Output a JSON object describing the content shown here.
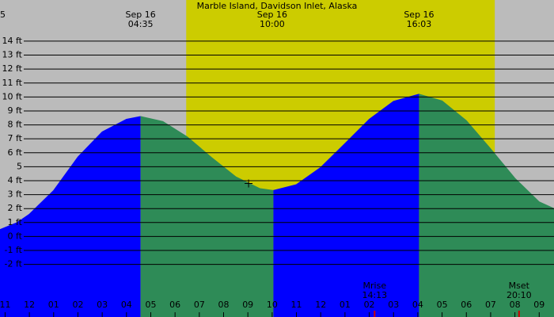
{
  "chart_data": {
    "type": "tide",
    "title": "Marble Island, Davidson Inlet, Alaska",
    "background": "#bbbbbb",
    "daylight": {
      "range": [
        6.46,
        19.17
      ],
      "color": "#cccc00"
    },
    "xlim": [
      -1.21,
      21.61
    ],
    "ylim": [
      -5.77,
      16.95
    ],
    "yticks": [
      {
        "value": 14,
        "label": "14 ft"
      },
      {
        "value": 13,
        "label": "13 ft"
      },
      {
        "value": 12,
        "label": "12 ft"
      },
      {
        "value": 11,
        "label": "11 ft"
      },
      {
        "value": 10,
        "label": "10 ft"
      },
      {
        "value": 9,
        "label": "9 ft"
      },
      {
        "value": 8,
        "label": "8 ft"
      },
      {
        "value": 7,
        "label": "7 ft"
      },
      {
        "value": 6,
        "label": "6 ft"
      },
      {
        "value": 5,
        "label": "5"
      },
      {
        "value": 4,
        "label": "4 ft"
      },
      {
        "value": 3,
        "label": "3 ft"
      },
      {
        "value": 2,
        "label": "2 ft"
      },
      {
        "value": 1,
        "label": "1 ft"
      },
      {
        "value": 0,
        "label": "0 ft"
      },
      {
        "value": -1,
        "label": "-1 ft"
      },
      {
        "value": -2,
        "label": "-2 ft"
      }
    ],
    "xticks": [
      {
        "value": -1,
        "label": "11"
      },
      {
        "value": 0,
        "label": "12"
      },
      {
        "value": 1,
        "label": "01"
      },
      {
        "value": 2,
        "label": "02"
      },
      {
        "value": 3,
        "label": "03"
      },
      {
        "value": 4,
        "label": "04"
      },
      {
        "value": 5,
        "label": "05"
      },
      {
        "value": 6,
        "label": "06"
      },
      {
        "value": 7,
        "label": "07"
      },
      {
        "value": 8,
        "label": "08"
      },
      {
        "value": 9,
        "label": "09"
      },
      {
        "value": 10,
        "label": "10"
      },
      {
        "value": 11,
        "label": "11"
      },
      {
        "value": 12,
        "label": "12"
      },
      {
        "value": 13,
        "label": "01"
      },
      {
        "value": 14,
        "label": "02"
      },
      {
        "value": 15,
        "label": "03"
      },
      {
        "value": 16,
        "label": "04"
      },
      {
        "value": 17,
        "label": "05"
      },
      {
        "value": 18,
        "label": "06"
      },
      {
        "value": 19,
        "label": "07"
      },
      {
        "value": 20,
        "label": "08"
      },
      {
        "value": 21,
        "label": "09"
      }
    ],
    "grid": true,
    "series": [
      {
        "color": "#0000ff",
        "x": [
          -1.21,
          -0.5,
          0,
          1,
          2,
          3,
          4,
          4.58
        ],
        "values": [
          0.5,
          1.0,
          1.6,
          3.3,
          5.7,
          7.5,
          8.4,
          8.6
        ]
      },
      {
        "color": "#2e8b57",
        "x": [
          4.58,
          5.5,
          6.5,
          7.5,
          8.5,
          9.5,
          10.05
        ],
        "values": [
          8.6,
          8.24,
          7.14,
          5.67,
          4.28,
          3.43,
          3.3
        ]
      },
      {
        "color": "#0000ff",
        "x": [
          10.05,
          11,
          12,
          13,
          14,
          15,
          16.05
        ],
        "values": [
          3.3,
          3.72,
          4.95,
          6.66,
          8.4,
          9.69,
          10.2
        ]
      },
      {
        "color": "#2e8b57",
        "x": [
          16.05,
          17,
          18,
          19,
          20,
          21,
          21.61
        ],
        "values": [
          10.2,
          9.72,
          8.3,
          6.28,
          4.17,
          2.48,
          2.0
        ]
      }
    ],
    "marker": {
      "x": 9.03,
      "value": 3.8
    },
    "top_labels": [
      {
        "x": -1.21,
        "time": "5"
      },
      {
        "x": 4.58,
        "date": "Sep 16",
        "time": "04:35"
      },
      {
        "x": 10.0,
        "date": "Sep 16",
        "time": "10:00"
      },
      {
        "x": 16.05,
        "date": "Sep 16",
        "time": "16:03"
      }
    ],
    "moon": [
      {
        "x": 14.22,
        "label": "Mrise",
        "time": "14:13"
      },
      {
        "x": 20.17,
        "label": "Mset",
        "time": "20:10"
      }
    ]
  }
}
